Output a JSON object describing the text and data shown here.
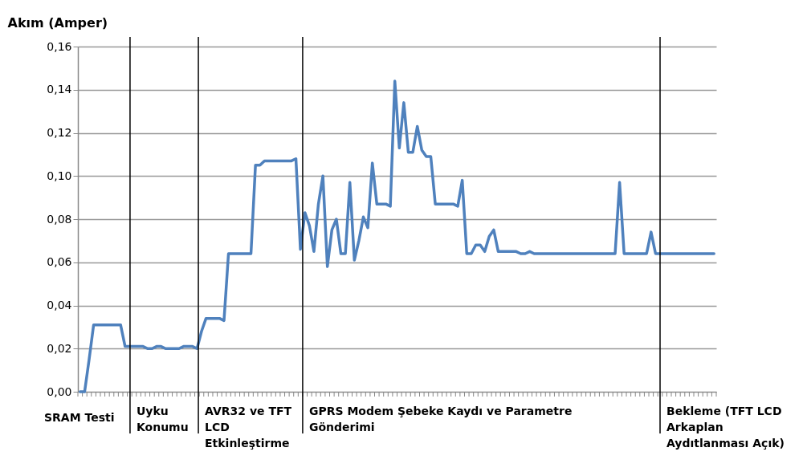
{
  "chart_data": {
    "type": "line",
    "ylabel": "Akım (Amper)",
    "categories": [
      null,
      null,
      null,
      null,
      null,
      null,
      null,
      null,
      null,
      null,
      null,
      null,
      null,
      null,
      null,
      null,
      null,
      null,
      null,
      null,
      null,
      null,
      null,
      null,
      null,
      null,
      null,
      null,
      null,
      null,
      null,
      null,
      null,
      null,
      null,
      null,
      null,
      null,
      null,
      null,
      null,
      null,
      null,
      null,
      null,
      null,
      null,
      null,
      null,
      null,
      null,
      null,
      null,
      null,
      null,
      null,
      null,
      null,
      null,
      null,
      null,
      null,
      null,
      null,
      null,
      null,
      null,
      null,
      null,
      null,
      null,
      null,
      null,
      null,
      null,
      null,
      null,
      null,
      null,
      null,
      null,
      null,
      null,
      null,
      null,
      null,
      null,
      null,
      null,
      null,
      null,
      null,
      null,
      null,
      null,
      null,
      null,
      null,
      null,
      null,
      null,
      null,
      null,
      null,
      null,
      null,
      null,
      null,
      null,
      null,
      null,
      null,
      null,
      null,
      null,
      null,
      null,
      null,
      null,
      null,
      null,
      null,
      null,
      null,
      null,
      null,
      null,
      null,
      null,
      null,
      null,
      null,
      null,
      null,
      null,
      null,
      null,
      null,
      null,
      null,
      null,
      null
    ],
    "series": [
      {
        "color": "#4f81bd",
        "values": [
          0,
          0,
          0.015,
          0.031,
          0.031,
          0.031,
          0.031,
          0.031,
          0.031,
          0.031,
          0.021,
          0.021,
          0.021,
          0.021,
          0.021,
          0.02,
          0.02,
          0.021,
          0.021,
          0.02,
          0.02,
          0.02,
          0.02,
          0.021,
          0.021,
          0.021,
          0.02,
          0.028,
          0.034,
          0.034,
          0.034,
          0.034,
          0.033,
          0.064,
          0.064,
          0.064,
          0.064,
          0.064,
          0.064,
          0.105,
          0.105,
          0.107,
          0.107,
          0.107,
          0.107,
          0.107,
          0.107,
          0.107,
          0.108,
          0.066,
          0.083,
          0.077,
          0.065,
          0.087,
          0.1,
          0.058,
          0.075,
          0.08,
          0.064,
          0.064,
          0.097,
          0.061,
          0.07,
          0.081,
          0.076,
          0.106,
          0.087,
          0.087,
          0.087,
          0.086,
          0.144,
          0.113,
          0.134,
          0.111,
          0.111,
          0.123,
          0.112,
          0.109,
          0.109,
          0.087,
          0.087,
          0.087,
          0.087,
          0.087,
          0.086,
          0.098,
          0.064,
          0.064,
          0.068,
          0.068,
          0.065,
          0.072,
          0.075,
          0.065,
          0.065,
          0.065,
          0.065,
          0.065,
          0.064,
          0.064,
          0.065,
          0.064,
          0.064,
          0.064,
          0.064,
          0.064,
          0.064,
          0.064,
          0.064,
          0.064,
          0.064,
          0.064,
          0.064,
          0.064,
          0.064,
          0.064,
          0.064,
          0.064,
          0.064,
          0.064,
          0.097,
          0.064,
          0.064,
          0.064,
          0.064,
          0.064,
          0.064,
          0.074,
          0.064,
          0.064,
          0.064,
          0.064,
          0.064,
          0.064,
          0.064,
          0.064,
          0.064,
          0.064,
          0.064,
          0.064,
          0.064,
          0.064
        ]
      }
    ],
    "ylim": [
      0,
      0.16
    ],
    "yticks": [
      {
        "value": 0,
        "label": "0,00"
      },
      {
        "value": 0.02,
        "label": "0,02"
      },
      {
        "value": 0.04,
        "label": "0,04"
      },
      {
        "value": 0.06,
        "label": "0,06"
      },
      {
        "value": 0.08,
        "label": "0,08"
      },
      {
        "value": 0.1,
        "label": "0,10"
      },
      {
        "value": 0.12,
        "label": "0,12"
      },
      {
        "value": 0.14,
        "label": "0,14"
      },
      {
        "value": 0.16,
        "label": "0,16"
      }
    ],
    "tick_labels": "y",
    "grid": "y",
    "marker": "none",
    "line_style": "solid",
    "annotations": [
      "SRAM Testi",
      "Uyku\nKonumu",
      "AVR32 ve TFT\nLCD\nEtkinleştirme",
      "GPRS Modem Şebeke Kaydı ve Parametre\nGönderimi",
      "Bekleme (TFT LCD\nArkaplan\nAydıtlanması Açık)"
    ]
  }
}
